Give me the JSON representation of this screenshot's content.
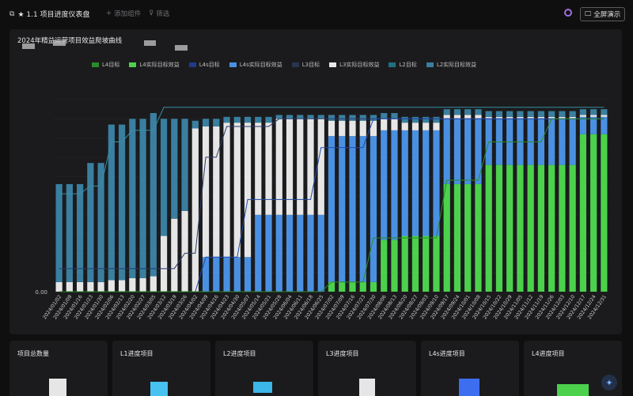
{
  "header": {
    "title": "★ 1.1 项目进度仪表盘",
    "add_widget": "添加组件",
    "filter": "筛选",
    "fullscreen": "全屏演示"
  },
  "cards": [
    {
      "label": "项目总数量",
      "color": "#e6e6e6"
    },
    {
      "label": "L1进度项目",
      "color": "#47c1f0"
    },
    {
      "label": "L2进度项目",
      "color": "#3bb6e6"
    },
    {
      "label": "L3进度项目",
      "color": "#e6e6e6"
    },
    {
      "label": "L4s进度项目",
      "color": "#3d6ef0"
    },
    {
      "label": "L4进度项目",
      "color": "#4cd14c"
    }
  ],
  "chart_data": {
    "type": "bar",
    "title": "2024年精益运营项目效益爬坡曲线",
    "y_zero_label": "0.00",
    "ymax": 100,
    "legend": [
      {
        "name": "L4目标",
        "color": "#2a8a2a",
        "kind": "line"
      },
      {
        "name": "L4实际目标效益",
        "color": "#4cd14c",
        "kind": "bar"
      },
      {
        "name": "L4s目标",
        "color": "#1e3a8c",
        "kind": "line"
      },
      {
        "name": "L4s实际目标效益",
        "color": "#4a90e2",
        "kind": "bar"
      },
      {
        "name": "L3目标",
        "color": "#2a3450",
        "kind": "line"
      },
      {
        "name": "L3实际目标效益",
        "color": "#e6e6e6",
        "kind": "bar"
      },
      {
        "name": "L2目标",
        "color": "#1f6f80",
        "kind": "line"
      },
      {
        "name": "L2实际目标效益",
        "color": "#3a7fa0",
        "kind": "bar"
      }
    ],
    "categories": [
      "2024/01/02",
      "2024/01/09",
      "2024/01/16",
      "2024/01/23",
      "2024/01/30",
      "2024/02/06",
      "2024/02/13",
      "2024/02/20",
      "2024/02/27",
      "2024/03/05",
      "2024/03/12",
      "2024/03/19",
      "2024/03/26",
      "2024/04/02",
      "2024/04/09",
      "2024/04/16",
      "2024/04/23",
      "2024/04/30",
      "2024/05/07",
      "2024/05/14",
      "2024/05/21",
      "2024/05/28",
      "2024/06/04",
      "2024/06/11",
      "2024/06/18",
      "2024/06/25",
      "2024/07/02",
      "2024/07/09",
      "2024/07/16",
      "2024/07/23",
      "2024/07/30",
      "2024/08/06",
      "2024/08/13",
      "2024/08/20",
      "2024/08/27",
      "2024/09/03",
      "2024/09/10",
      "2024/09/17",
      "2024/09/24",
      "2024/10/01",
      "2024/10/08",
      "2024/10/15",
      "2024/10/22",
      "2024/10/29",
      "2024/11/05",
      "2024/11/12",
      "2024/11/19",
      "2024/11/26",
      "2024/12/03",
      "2024/12/10",
      "2024/12/17",
      "2024/12/24",
      "2024/12/31"
    ],
    "tick_labels": [
      "2024/01/02",
      "2024/01/16",
      "2024/01/30",
      "2024/02/13",
      "2024/02/27",
      "2024/03/12",
      "2024/03/26",
      "2024/04/09",
      "2024/04/23",
      "2024/05/07",
      "2024/05/21",
      "2024/06/04",
      "2024/06/18",
      "2024/07/02",
      "2024/07/16",
      "2024/07/30",
      "2024/08/13",
      "2024/08/27",
      "2024/09/10",
      "2024/09/24",
      "2024/10/08",
      "2024/10/22",
      "2024/11/05",
      "2024/11/19",
      "2024/12/03",
      "2024/12/17",
      "2024/12/31",
      "2024/01/09",
      "2024/01/23",
      "2024/02/06",
      "2024/02/20",
      "2024/03/05",
      "2024/03/19",
      "2024/04/02",
      "2024/04/16",
      "2024/04/30",
      "2024/05/14",
      "2024/05/28",
      "2024/06/11",
      "2024/06/25",
      "2024/07/09",
      "2024/07/23",
      "2024/08/06",
      "2024/08/20",
      "2024/09/03",
      "2024/09/17",
      "2024/10/01",
      "2024/10/15",
      "2024/10/29",
      "2024/11/12",
      "2024/11/26",
      "2024/12/10",
      "2024/12/24"
    ],
    "series": [
      {
        "name": "L4实际目标效益",
        "values": [
          0,
          0,
          0,
          0,
          0,
          0,
          0,
          0,
          0,
          0,
          0,
          0,
          0,
          0,
          0,
          0,
          0,
          0,
          0,
          0,
          0,
          0,
          0,
          0,
          0,
          0,
          0,
          0,
          0,
          0,
          0,
          0,
          0,
          0,
          0,
          0,
          0,
          0,
          0,
          0,
          0,
          0,
          0,
          0,
          0,
          0,
          0,
          0,
          0,
          0,
          0,
          0,
          0
        ]
      },
      {
        "name": "L4s实际目标效益",
        "values": [
          0,
          0,
          0,
          0,
          0,
          0,
          0,
          0,
          0,
          0,
          0,
          0,
          0,
          0,
          0,
          0,
          0,
          0,
          0,
          0,
          0,
          0,
          0,
          0,
          0,
          0,
          0,
          0,
          0,
          0,
          0,
          0,
          0,
          0,
          0,
          0,
          0,
          0,
          0,
          0,
          0,
          0,
          0,
          0,
          0,
          0,
          0,
          0,
          0,
          0,
          0,
          0,
          0
        ]
      },
      {
        "name": "L3实际目标效益",
        "values": [
          0,
          0,
          0,
          0,
          0,
          0,
          0,
          0,
          0,
          0,
          0,
          0,
          0,
          0,
          0,
          0,
          0,
          0,
          0,
          0,
          0,
          0,
          0,
          0,
          0,
          0,
          0,
          0,
          0,
          0,
          0,
          0,
          0,
          0,
          0,
          0,
          0,
          0,
          0,
          0,
          0,
          0,
          0,
          0,
          0,
          0,
          0,
          0,
          0,
          0,
          0,
          0,
          0
        ]
      },
      {
        "name": "L2实际目标效益",
        "values": [
          0,
          0,
          0,
          0,
          0,
          0,
          0,
          0,
          0,
          0,
          0,
          0,
          0,
          0,
          0,
          0,
          0,
          0,
          0,
          0,
          0,
          0,
          0,
          0,
          0,
          0,
          0,
          0,
          0,
          0,
          0,
          0,
          0,
          0,
          0,
          0,
          0,
          0,
          0,
          0,
          0,
          0,
          0,
          0,
          0,
          0,
          0,
          0,
          0,
          0,
          0,
          0,
          0
        ]
      }
    ],
    "stack_profile": {
      "l4": [
        0,
        0,
        0,
        0,
        0,
        0,
        0,
        0,
        0,
        0,
        0,
        0,
        0,
        0,
        0,
        0,
        0,
        0,
        0,
        0,
        0,
        0,
        0,
        0,
        0,
        0,
        0,
        0,
        0,
        0,
        0,
        0,
        0,
        0,
        0,
        0,
        0,
        0,
        0,
        0,
        0,
        0,
        0,
        0,
        0,
        0,
        0,
        0,
        0,
        0,
        0,
        0,
        0
      ],
      "l4s": [
        0,
        0,
        0,
        0,
        0,
        0,
        0,
        0,
        0,
        0,
        0,
        0,
        0,
        0,
        0,
        0,
        0,
        0,
        0,
        0,
        0,
        0,
        0,
        0,
        0,
        0,
        0,
        0,
        0,
        0,
        0,
        0,
        0,
        0,
        0,
        0,
        0,
        0,
        0,
        0,
        0,
        0,
        0,
        0,
        0,
        0,
        0,
        0,
        0,
        0,
        0,
        0,
        0
      ],
      "l3": [
        0,
        0,
        0,
        0,
        0,
        0,
        0,
        0,
        0,
        0,
        0,
        0,
        0,
        0,
        0,
        0,
        0,
        0,
        0,
        0,
        0,
        0,
        0,
        0,
        0,
        0,
        0,
        0,
        0,
        0,
        0,
        0,
        0,
        0,
        0,
        0,
        0,
        0,
        0,
        0,
        0,
        0,
        0,
        0,
        0,
        0,
        0,
        0,
        0,
        0,
        0,
        0,
        0
      ],
      "l2": [
        0,
        0,
        0,
        0,
        0,
        0,
        0,
        0,
        0,
        0,
        0,
        0,
        0,
        0,
        0,
        0,
        0,
        0,
        0,
        0,
        0,
        0,
        0,
        0,
        0,
        0,
        0,
        0,
        0,
        0,
        0,
        0,
        0,
        0,
        0,
        0,
        0,
        0,
        0,
        0,
        0,
        0,
        0,
        0,
        0,
        0,
        0,
        0,
        0,
        0,
        0,
        0,
        0
      ]
    }
  }
}
